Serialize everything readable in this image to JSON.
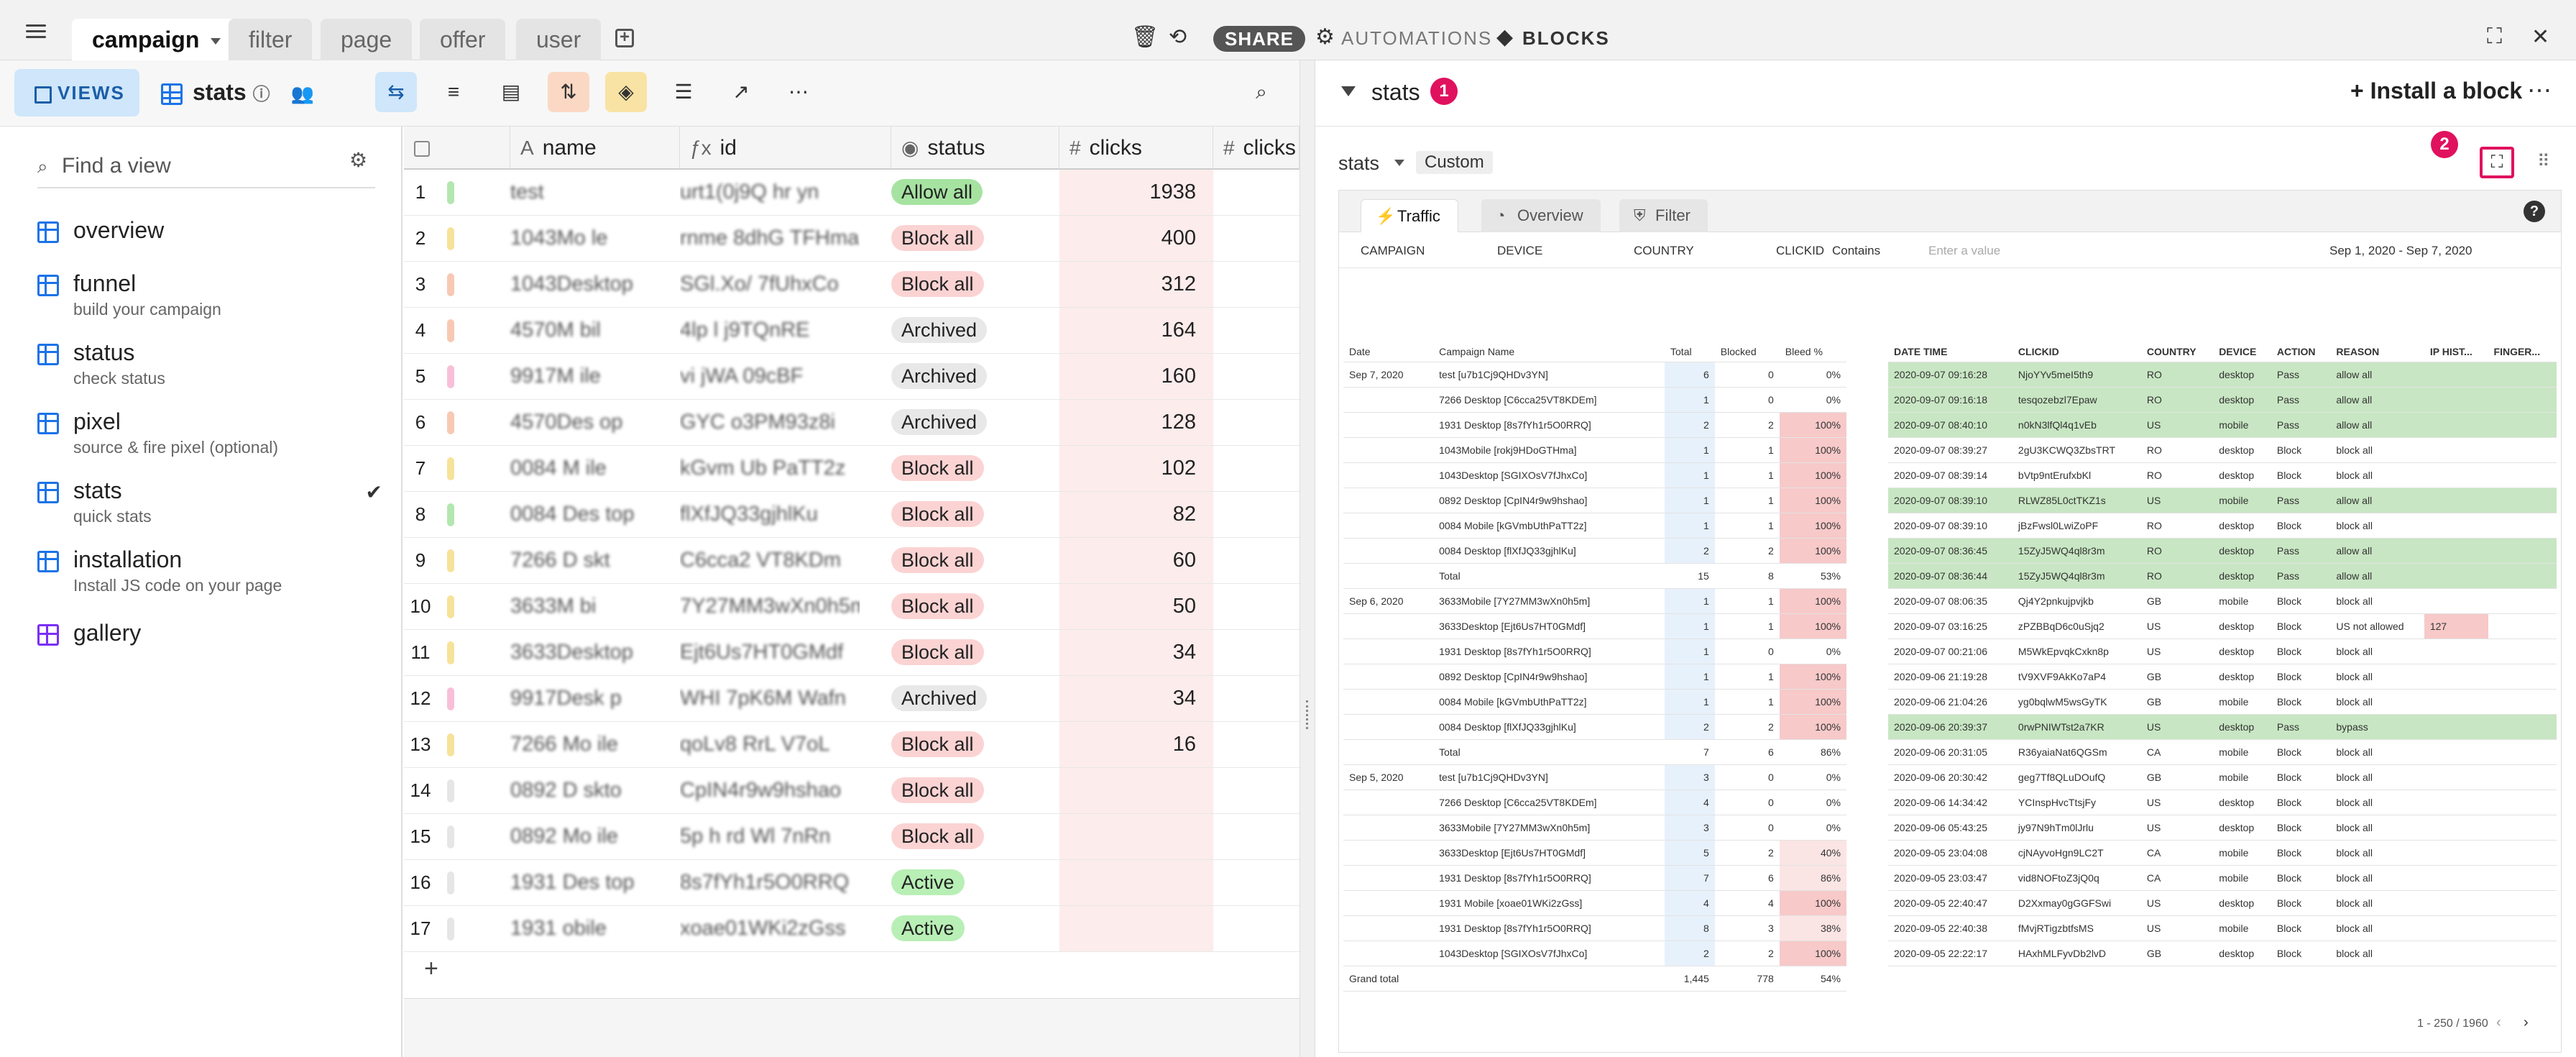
{
  "tabs": [
    {
      "label": "campaign",
      "active": true
    },
    {
      "label": "filter"
    },
    {
      "label": "page"
    },
    {
      "label": "offer"
    },
    {
      "label": "user"
    }
  ],
  "top_right": {
    "share": "SHARE",
    "automations": "AUTOMATIONS",
    "blocks": "BLOCKS"
  },
  "toolbar": {
    "views": "VIEWS",
    "table_name": "stats"
  },
  "sidebar": {
    "search_placeholder": "Find a view",
    "items": [
      {
        "title": "overview",
        "sub": ""
      },
      {
        "title": "funnel",
        "sub": "build your campaign"
      },
      {
        "title": "status",
        "sub": "check status"
      },
      {
        "title": "pixel",
        "sub": "source & fire pixel (optional)"
      },
      {
        "title": "stats",
        "sub": "quick stats",
        "checked": true
      },
      {
        "title": "installation",
        "sub": "Install JS code on your page"
      },
      {
        "title": "gallery",
        "sub": ""
      }
    ]
  },
  "grid": {
    "columns": [
      "name",
      "id",
      "status",
      "clicks",
      "clicks"
    ],
    "status_colors": {
      "Allow all": "#a6e3a1",
      "Block all": "#fbd3d3",
      "Archived": "#e8e8e8",
      "Active": "#b8efb5"
    },
    "rows": [
      {
        "n": "1",
        "color": "#b4e6b0",
        "name": "test",
        "id": "urt1(0j9Q hr yn",
        "status": "Allow all",
        "clicks": "1938"
      },
      {
        "n": "2",
        "color": "#f7e29a",
        "name": "1043Mo le",
        "id": "rnme 8dhG TFHma",
        "status": "Block all",
        "clicks": "400"
      },
      {
        "n": "3",
        "color": "#f7c9b4",
        "name": "1043Desktop",
        "id": "SGl.Xo/ 7fUhxCo",
        "status": "Block all",
        "clicks": "312"
      },
      {
        "n": "4",
        "color": "#f7c9b4",
        "name": "4570M bil",
        "id": "4lp l j9TQnRE",
        "status": "Archived",
        "clicks": "164"
      },
      {
        "n": "5",
        "color": "#f7c0d8",
        "name": "9917M ile",
        "id": "vi jWA 09cBF",
        "status": "Archived",
        "clicks": "160"
      },
      {
        "n": "6",
        "color": "#f7c9b4",
        "name": "4570Des op",
        "id": "GYC o3PM93z8i",
        "status": "Archived",
        "clicks": "128"
      },
      {
        "n": "7",
        "color": "#f7e29a",
        "name": "0084 M ile",
        "id": "kGvm Ub PaTT2z",
        "status": "Block all",
        "clicks": "102"
      },
      {
        "n": "8",
        "color": "#b4e6b0",
        "name": "0084 Des top",
        "id": "flXfJQ33gjhlKu",
        "status": "Block all",
        "clicks": "82"
      },
      {
        "n": "9",
        "color": "#f7e29a",
        "name": "7266 D skt",
        "id": "C6cca2 VT8KDm",
        "status": "Block all",
        "clicks": "60"
      },
      {
        "n": "10",
        "color": "#f7e29a",
        "name": "3633M bi",
        "id": "7Y27MM3wXn0h5m",
        "status": "Block all",
        "clicks": "50"
      },
      {
        "n": "11",
        "color": "#f7e29a",
        "name": "3633Desktop",
        "id": "Ejt6Us7HT0GMdf",
        "status": "Block all",
        "clicks": "34"
      },
      {
        "n": "12",
        "color": "#f7c0d8",
        "name": "9917Desk p",
        "id": "WHI 7pK6M Wafn",
        "status": "Archived",
        "clicks": "34"
      },
      {
        "n": "13",
        "color": "#f7e29a",
        "name": "7266 Mo ile",
        "id": "qoLv8 RrL V7oL",
        "status": "Block all",
        "clicks": "16"
      },
      {
        "n": "14",
        "color": "#e6e6e6",
        "name": "0892 D skto",
        "id": "CpIN4r9w9hshao",
        "status": "Block all",
        "clicks": ""
      },
      {
        "n": "15",
        "color": "#e6e6e6",
        "name": "0892 Mo ile",
        "id": "5p h rd Wl 7nRn",
        "status": "Block all",
        "clicks": ""
      },
      {
        "n": "16",
        "color": "#e6e6e6",
        "name": "1931 Des top",
        "id": "8s7fYh1r5O0RRQ",
        "status": "Active",
        "clicks": ""
      },
      {
        "n": "17",
        "color": "#e6e6e6",
        "name": "1931 obile",
        "id": "xoae01WKi2zGss",
        "status": "Active",
        "clicks": ""
      }
    ]
  },
  "panel": {
    "title": "stats",
    "badge1": "1",
    "install": "Install a block",
    "badge2": "2",
    "sub_title": "stats",
    "sub_tag": "Custom",
    "tabs": [
      "Traffic",
      "Overview",
      "Filter"
    ],
    "filters": {
      "campaign": "CAMPAIGN",
      "device": "DEVICE",
      "country": "COUNTRY",
      "clickid": "CLICKID",
      "contains": "Contains",
      "placeholder": "Enter a value",
      "dates": "Sep 1, 2020 - Sep 7, 2020"
    },
    "pagination": "1 - 250 / 1960"
  },
  "left_table": {
    "headers": [
      "Date",
      "Campaign Name",
      "Total",
      "Blocked",
      "Bleed %"
    ],
    "groups": [
      {
        "date": "Sep 7, 2020",
        "rows": [
          [
            "test [u7b1Cj9QHDv3YN]",
            "6",
            "0",
            "0%"
          ],
          [
            "7266 Desktop [C6cca25VT8KDEm]",
            "1",
            "0",
            "0%"
          ],
          [
            "1931 Desktop [8s7fYh1r5O0RRQ]",
            "2",
            "2",
            "100%"
          ],
          [
            "1043Mobile [rokj9HDoGTHma]",
            "1",
            "1",
            "100%"
          ],
          [
            "1043Desktop [SGIXOsV7fJhxCo]",
            "1",
            "1",
            "100%"
          ],
          [
            "0892 Desktop [CpIN4r9w9hshao]",
            "1",
            "1",
            "100%"
          ],
          [
            "0084 Mobile [kGVmbUthPaTT2z]",
            "1",
            "1",
            "100%"
          ],
          [
            "0084 Desktop [flXfJQ33gjhlKu]",
            "2",
            "2",
            "100%"
          ]
        ],
        "total": [
          "Total",
          "15",
          "8",
          "53%"
        ]
      },
      {
        "date": "Sep 6, 2020",
        "rows": [
          [
            "3633Mobile [7Y27MM3wXn0h5m]",
            "1",
            "1",
            "100%"
          ],
          [
            "3633Desktop [Ejt6Us7HT0GMdf]",
            "1",
            "1",
            "100%"
          ],
          [
            "1931 Desktop [8s7fYh1r5O0RRQ]",
            "1",
            "0",
            "0%"
          ],
          [
            "0892 Desktop [CpIN4r9w9hshao]",
            "1",
            "1",
            "100%"
          ],
          [
            "0084 Mobile [kGVmbUthPaTT2z]",
            "1",
            "1",
            "100%"
          ],
          [
            "0084 Desktop [flXfJQ33gjhlKu]",
            "2",
            "2",
            "100%"
          ]
        ],
        "total": [
          "Total",
          "7",
          "6",
          "86%"
        ]
      },
      {
        "date": "Sep 5, 2020",
        "rows": [
          [
            "test [u7b1Cj9QHDv3YN]",
            "3",
            "0",
            "0%"
          ],
          [
            "7266 Desktop [C6cca25VT8KDEm]",
            "4",
            "0",
            "0%"
          ],
          [
            "3633Mobile [7Y27MM3wXn0h5m]",
            "3",
            "0",
            "0%"
          ],
          [
            "3633Desktop [Ejt6Us7HT0GMdf]",
            "5",
            "2",
            "40%"
          ],
          [
            "1931 Desktop [8s7fYh1r5O0RRQ]",
            "7",
            "6",
            "86%"
          ],
          [
            "1931 Mobile [xoae01WKi2zGss]",
            "4",
            "4",
            "100%"
          ],
          [
            "1931 Desktop [8s7fYh1r5O0RRQ]",
            "8",
            "3",
            "38%"
          ],
          [
            "1043Desktop [SGIXOsV7fJhxCo]",
            "2",
            "2",
            "100%"
          ]
        ]
      }
    ],
    "grand": [
      "Grand total",
      "1,445",
      "778",
      "54%"
    ]
  },
  "right_table": {
    "headers": [
      "DATE TIME",
      "CLICKID",
      "COUNTRY",
      "DEVICE",
      "ACTION",
      "REASON",
      "IP HIST...",
      "FINGER..."
    ],
    "rows": [
      [
        "2020-09-07 09:16:28",
        "NjoYYv5meI5th9",
        "RO",
        "desktop",
        "Pass",
        "allow all",
        "",
        ""
      ],
      [
        "2020-09-07 09:16:18",
        "tesqozebzl7Epaw",
        "RO",
        "desktop",
        "Pass",
        "allow all",
        "",
        ""
      ],
      [
        "2020-09-07 08:40:10",
        "n0kN3lfQl4q1vEb",
        "US",
        "mobile",
        "Pass",
        "allow all",
        "",
        ""
      ],
      [
        "2020-09-07 08:39:27",
        "2gU3KCWQ3ZbsTRT",
        "RO",
        "desktop",
        "Block",
        "block all",
        "",
        ""
      ],
      [
        "2020-09-07 08:39:14",
        "bVtp9ntErufxbKl",
        "RO",
        "desktop",
        "Block",
        "block all",
        "",
        ""
      ],
      [
        "2020-09-07 08:39:10",
        "RLWZ85L0ctTKZ1s",
        "US",
        "mobile",
        "Pass",
        "allow all",
        "",
        ""
      ],
      [
        "2020-09-07 08:39:10",
        "jBzFwsl0LwiZoPF",
        "RO",
        "desktop",
        "Block",
        "block all",
        "",
        ""
      ],
      [
        "2020-09-07 08:36:45",
        "15ZyJ5WQ4ql8r3m",
        "RO",
        "desktop",
        "Pass",
        "allow all",
        "",
        ""
      ],
      [
        "2020-09-07 08:36:44",
        "15ZyJ5WQ4ql8r3m",
        "RO",
        "desktop",
        "Pass",
        "allow all",
        "",
        ""
      ],
      [
        "2020-09-07 08:06:35",
        "Qj4Y2pnkujpvjkb",
        "GB",
        "mobile",
        "Block",
        "block all",
        "",
        ""
      ],
      [
        "2020-09-07 03:16:25",
        "zPZBBqD6c0uSjq2",
        "US",
        "desktop",
        "Block",
        "US not allowed",
        "127",
        ""
      ],
      [
        "2020-09-07 00:21:06",
        "M5WkEpvqkCxkn8p",
        "US",
        "desktop",
        "Block",
        "block all",
        "",
        ""
      ],
      [
        "2020-09-06 21:19:28",
        "tV9XVF9AkKo7aP4",
        "GB",
        "desktop",
        "Block",
        "block all",
        "",
        ""
      ],
      [
        "2020-09-06 21:04:26",
        "yg0bqlwM5wsGyTK",
        "GB",
        "mobile",
        "Block",
        "block all",
        "",
        ""
      ],
      [
        "2020-09-06 20:39:37",
        "0rwPNIWTst2a7KR",
        "US",
        "desktop",
        "Pass",
        "bypass",
        "",
        ""
      ],
      [
        "2020-09-06 20:31:05",
        "R36yaiaNat6QGSm",
        "CA",
        "mobile",
        "Block",
        "block all",
        "",
        ""
      ],
      [
        "2020-09-06 20:30:42",
        "geg7Tf8QLuDOufQ",
        "GB",
        "mobile",
        "Block",
        "block all",
        "",
        ""
      ],
      [
        "2020-09-06 14:34:42",
        "YCInspHvcTtsjFy",
        "US",
        "desktop",
        "Block",
        "block all",
        "",
        ""
      ],
      [
        "2020-09-06 05:43:25",
        "jy97N9hTm0lJrlu",
        "US",
        "desktop",
        "Block",
        "block all",
        "",
        ""
      ],
      [
        "2020-09-05 23:04:08",
        "cjNAyvoHgn9LC2T",
        "CA",
        "mobile",
        "Block",
        "block all",
        "",
        ""
      ],
      [
        "2020-09-05 23:03:47",
        "vid8NOFtoZ3jQ0q",
        "CA",
        "mobile",
        "Block",
        "block all",
        "",
        ""
      ],
      [
        "2020-09-05 22:40:47",
        "D2Xxmay0gGGFSwi",
        "US",
        "desktop",
        "Block",
        "block all",
        "",
        ""
      ],
      [
        "2020-09-05 22:40:38",
        "fMvjRTigzbtfsMS",
        "US",
        "mobile",
        "Block",
        "block all",
        "",
        ""
      ],
      [
        "2020-09-05 22:22:17",
        "HAxhMLFyvDb2lvD",
        "GB",
        "desktop",
        "Block",
        "block all",
        "",
        ""
      ]
    ]
  }
}
